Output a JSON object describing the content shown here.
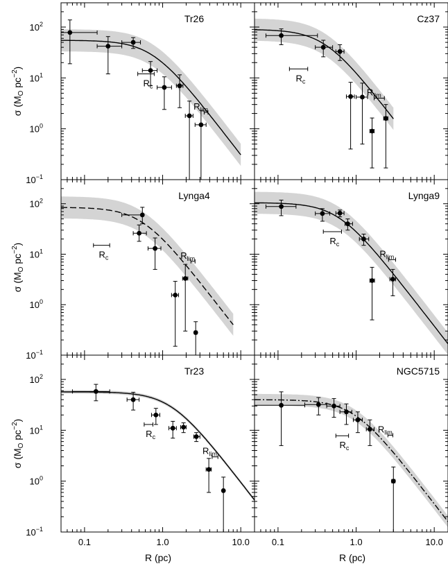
{
  "chart_data": {
    "type": "scatter",
    "layout": "3x2 grid of log-log panels sharing axes",
    "xlabel": "R (pc)",
    "ylabel": "σ (M",
    "ylabel_sub": "O",
    "ylabel_tail": " pc",
    "ylabel_exp": "−2",
    "ylabel_close": ")",
    "xscale": "log",
    "yscale": "log",
    "xlim": [
      0.05,
      15
    ],
    "ylim": [
      0.1,
      300
    ],
    "x_ticks": [
      {
        "v": 0.1,
        "label": "0.1"
      },
      {
        "v": 1,
        "label": "1.0"
      },
      {
        "v": 10,
        "label": "10.0"
      }
    ],
    "y_ticks": [
      {
        "v": 0.1,
        "base": "10",
        "exp": "−1"
      },
      {
        "v": 1,
        "base": "10",
        "exp": "0"
      },
      {
        "v": 10,
        "base": "10",
        "exp": "1"
      },
      {
        "v": 100,
        "base": "10",
        "exp": "2"
      }
    ],
    "band_color": "#d4d4d4",
    "marker_color": "#000000",
    "panels": [
      {
        "name": "Tr26",
        "line_style": "solid",
        "model": {
          "s_bg": 0,
          "s0": 55,
          "rc": 0.75
        },
        "band_factor": 1.65,
        "band_xmax": 10,
        "rc_label": {
          "text": "R",
          "sub": "c",
          "x": 0.62,
          "y": 12,
          "xlo": 0.48,
          "xhi": 0.78
        },
        "rlim_label": {
          "text": "R",
          "sub": "lim",
          "x": 3.6,
          "y": 2.1,
          "xlo": 3.4,
          "xhi": 3.8
        },
        "points": [
          {
            "x": 0.065,
            "y": 78,
            "xlo": 0.05,
            "xhi": 0.145,
            "ylo": 19,
            "yhi": 138
          },
          {
            "x": 0.2,
            "y": 42,
            "xlo": 0.145,
            "xhi": 0.3,
            "ylo": 12,
            "yhi": 65
          },
          {
            "x": 0.42,
            "y": 50,
            "xlo": 0.3,
            "xhi": 0.52,
            "ylo": 38,
            "yhi": 62
          },
          {
            "x": 0.7,
            "y": 14,
            "xlo": 0.55,
            "xhi": 0.85,
            "ylo": 7,
            "yhi": 21
          },
          {
            "x": 1.05,
            "y": 6.5,
            "xlo": 0.85,
            "xhi": 1.3,
            "ylo": 2.4,
            "yhi": 10.5
          },
          {
            "x": 1.65,
            "y": 7,
            "xlo": 1.5,
            "xhi": 1.82,
            "ylo": 2.6,
            "yhi": 11.5
          },
          {
            "x": 2.2,
            "y": 1.8,
            "xlo": 1.95,
            "xhi": 2.45,
            "ylo": 0.1,
            "yhi": 3.5
          },
          {
            "x": 3.1,
            "y": 1.2,
            "xlo": 2.6,
            "xhi": 3.6,
            "ylo": 0.1,
            "yhi": 2.3
          }
        ]
      },
      {
        "name": "Cz37",
        "line_style": "solid",
        "model": {
          "s_bg": 0,
          "s0": 90,
          "rc": 0.4
        },
        "band_factor": 1.65,
        "band_xmax": 3.0,
        "rc_label": {
          "text": "R",
          "sub": "c",
          "x": 0.18,
          "y": 15,
          "xlo": 0.14,
          "xhi": 0.24
        },
        "rlim_label": {
          "text": "R",
          "sub": "lim",
          "x": 2.0,
          "y": 4.0,
          "xlo": 1.7,
          "xhi": 2.3
        },
        "points": [
          {
            "x": 0.11,
            "y": 68,
            "xlo": 0.07,
            "xhi": 0.32,
            "ylo": 45,
            "yhi": 92
          },
          {
            "x": 0.38,
            "y": 40,
            "xlo": 0.3,
            "xhi": 0.5,
            "ylo": 26,
            "yhi": 55
          },
          {
            "x": 0.62,
            "y": 33,
            "xlo": 0.55,
            "xhi": 0.7,
            "ylo": 22,
            "yhi": 45
          },
          {
            "x": 0.85,
            "y": 4.3,
            "xlo": 0.75,
            "xhi": 0.95,
            "ylo": 0.4,
            "yhi": 8.2
          },
          {
            "x": 1.2,
            "y": 4.2,
            "xlo": 1.0,
            "xhi": 1.4,
            "ylo": 0.5,
            "yhi": 7.9
          },
          {
            "x": 1.6,
            "y": 0.9,
            "xlo": 1.5,
            "xhi": 1.7,
            "ylo": 0.17,
            "yhi": 1.63
          },
          {
            "x": 2.4,
            "y": 1.6,
            "xlo": 2.25,
            "xhi": 2.55,
            "ylo": 0.17,
            "yhi": 3.0
          }
        ]
      },
      {
        "name": "Lynga4",
        "line_style": "dashed",
        "model": {
          "s_bg": 0,
          "s0": 85,
          "rc": 0.55
        },
        "band_factor": 1.65,
        "band_xmax": 8,
        "rc_label": {
          "text": "R",
          "sub": "c",
          "x": 0.17,
          "y": 15,
          "xlo": 0.13,
          "xhi": 0.21
        },
        "rlim_label": {
          "text": "R",
          "sub": "lim",
          "x": 2.45,
          "y": 7.2,
          "xlo": 2.3,
          "xhi": 2.6
        },
        "points": [
          {
            "x": 0.55,
            "y": 60,
            "xlo": 0.3,
            "xhi": 0.3,
            "ylo": 40,
            "yhi": 85
          },
          {
            "x": 0.5,
            "y": 26,
            "xlo": 0.42,
            "xhi": 0.62,
            "ylo": 18,
            "yhi": 38
          },
          {
            "x": 0.8,
            "y": 13,
            "xlo": 0.65,
            "xhi": 0.95,
            "ylo": 5,
            "yhi": 21
          },
          {
            "x": 1.45,
            "y": 1.55,
            "xlo": 1.3,
            "xhi": 1.6,
            "ylo": 0.15,
            "yhi": 2.9
          },
          {
            "x": 1.95,
            "y": 3.3,
            "xlo": 1.8,
            "xhi": 2.1,
            "ylo": 0.3,
            "yhi": 6.3
          },
          {
            "x": 2.65,
            "y": 0.28,
            "xlo": 2.55,
            "xhi": 2.75,
            "ylo": 0.1,
            "yhi": 0.46
          }
        ]
      },
      {
        "name": "Lynga9",
        "line_style": "solid",
        "model": {
          "s_bg": 0,
          "s0": 105,
          "rc": 0.6
        },
        "band_factor": 1.65,
        "band_xmax": 15,
        "rc_label": {
          "text": "R",
          "sub": "c",
          "x": 0.5,
          "y": 28,
          "xlo": 0.38,
          "xhi": 0.65
        },
        "rlim_label": {
          "text": "R",
          "sub": "lim",
          "x": 2.9,
          "y": 7.8,
          "xlo": 2.6,
          "xhi": 3.2
        },
        "points": [
          {
            "x": 0.11,
            "y": 88,
            "xlo": 0.07,
            "xhi": 0.17,
            "ylo": 58,
            "yhi": 118
          },
          {
            "x": 0.37,
            "y": 64,
            "xlo": 0.3,
            "xhi": 0.46,
            "ylo": 45,
            "yhi": 80
          },
          {
            "x": 0.62,
            "y": 65,
            "xlo": 0.55,
            "xhi": 0.7,
            "ylo": 55,
            "yhi": 75
          },
          {
            "x": 0.78,
            "y": 40,
            "xlo": 0.72,
            "xhi": 0.9,
            "ylo": 30,
            "yhi": 50
          },
          {
            "x": 1.25,
            "y": 20,
            "xlo": 1.1,
            "xhi": 1.45,
            "ylo": 15,
            "yhi": 25
          },
          {
            "x": 1.6,
            "y": 3.0,
            "xlo": 1.5,
            "xhi": 1.72,
            "ylo": 0.5,
            "yhi": 5.5
          },
          {
            "x": 2.95,
            "y": 3.2,
            "xlo": 2.7,
            "xhi": 3.2,
            "ylo": 1.5,
            "yhi": 5.0
          }
        ]
      },
      {
        "name": "Tr23",
        "line_style": "solid",
        "model": {
          "s_bg": 0,
          "s0": 57,
          "rc": 1.3
        },
        "band_factor": 1.08,
        "band_xmax": 15,
        "rc_label": {
          "text": "R",
          "sub": "c",
          "x": 0.65,
          "y": 13,
          "xlo": 0.58,
          "xhi": 0.75
        },
        "rlim_label": {
          "text": "R",
          "sub": "lim",
          "x": 4.7,
          "y": 3.0,
          "xlo": 4.3,
          "xhi": 5.1
        },
        "points": [
          {
            "x": 0.14,
            "y": 58,
            "xlo": 0.07,
            "xhi": 0.21,
            "ylo": 38,
            "yhi": 80
          },
          {
            "x": 0.42,
            "y": 40,
            "xlo": 0.35,
            "xhi": 0.5,
            "ylo": 25,
            "yhi": 56
          },
          {
            "x": 0.82,
            "y": 20,
            "xlo": 0.72,
            "xhi": 0.92,
            "ylo": 13,
            "yhi": 27
          },
          {
            "x": 1.35,
            "y": 11,
            "xlo": 1.2,
            "xhi": 1.5,
            "ylo": 7,
            "yhi": 15
          },
          {
            "x": 1.85,
            "y": 11.5,
            "xlo": 1.7,
            "xhi": 2.0,
            "ylo": 9,
            "yhi": 14
          },
          {
            "x": 2.7,
            "y": 7.5,
            "xlo": 2.5,
            "xhi": 3.0,
            "ylo": 6,
            "yhi": 9
          },
          {
            "x": 3.9,
            "y": 1.7,
            "xlo": 3.6,
            "xhi": 4.2,
            "ylo": 0.6,
            "yhi": 2.8
          },
          {
            "x": 6.0,
            "y": 0.65,
            "xlo": 5.8,
            "xhi": 6.2,
            "ylo": 0.1,
            "yhi": 1.2
          }
        ]
      },
      {
        "name": "NGC5715",
        "line_style": "dashdot",
        "model": {
          "s_bg": 0,
          "s0": 40,
          "rc": 0.95
        },
        "band_factor": 1.3,
        "band_xmax": 15,
        "rc_label": {
          "text": "R",
          "sub": "c",
          "x": 0.66,
          "y": 7.8,
          "xlo": 0.55,
          "xhi": 0.8
        },
        "rlim_label": {
          "text": "R",
          "sub": "lim",
          "x": 2.75,
          "y": 8.0,
          "xlo": 2.55,
          "xhi": 2.95
        },
        "points": [
          {
            "x": 0.11,
            "y": 31,
            "xlo": 0.05,
            "xhi": 0.22,
            "ylo": 5,
            "yhi": 57
          },
          {
            "x": 0.33,
            "y": 32,
            "xlo": 0.22,
            "xhi": 0.42,
            "ylo": 20,
            "yhi": 44
          },
          {
            "x": 0.52,
            "y": 30,
            "xlo": 0.42,
            "xhi": 0.62,
            "ylo": 18,
            "yhi": 42
          },
          {
            "x": 0.75,
            "y": 23,
            "xlo": 0.62,
            "xhi": 0.88,
            "ylo": 13,
            "yhi": 33
          },
          {
            "x": 1.05,
            "y": 16,
            "xlo": 0.92,
            "xhi": 1.2,
            "ylo": 9,
            "yhi": 23
          },
          {
            "x": 1.5,
            "y": 10.5,
            "xlo": 1.35,
            "xhi": 1.7,
            "ylo": 5,
            "yhi": 16
          },
          {
            "x": 3.0,
            "y": 1.0,
            "xlo": 2.85,
            "xhi": 3.15,
            "ylo": 0.1,
            "yhi": 1.9
          }
        ]
      }
    ]
  }
}
